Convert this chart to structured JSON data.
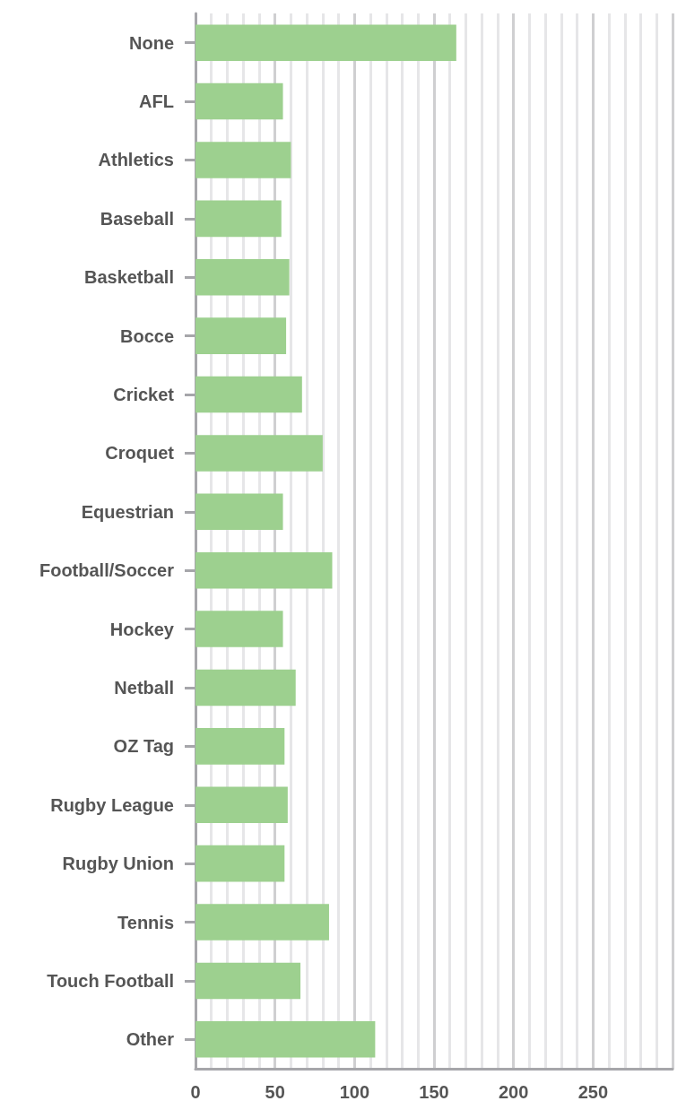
{
  "chart_data": {
    "type": "bar",
    "orientation": "horizontal",
    "categories": [
      "None",
      "AFL",
      "Athletics",
      "Baseball",
      "Basketball",
      "Bocce",
      "Cricket",
      "Croquet",
      "Equestrian",
      "Football/Soccer",
      "Hockey",
      "Netball",
      "OZ Tag",
      "Rugby League",
      "Rugby Union",
      "Tennis",
      "Touch Football",
      "Other"
    ],
    "values": [
      164,
      55,
      60,
      54,
      59,
      57,
      67,
      80,
      55,
      86,
      55,
      63,
      56,
      58,
      56,
      84,
      66,
      113
    ],
    "color": "#9dd08f",
    "xlim": [
      0,
      300
    ],
    "xticks": [
      0,
      50,
      100,
      150,
      200,
      250,
      {
        "value": 300,
        "label": null
      }
    ],
    "grid": "x"
  }
}
